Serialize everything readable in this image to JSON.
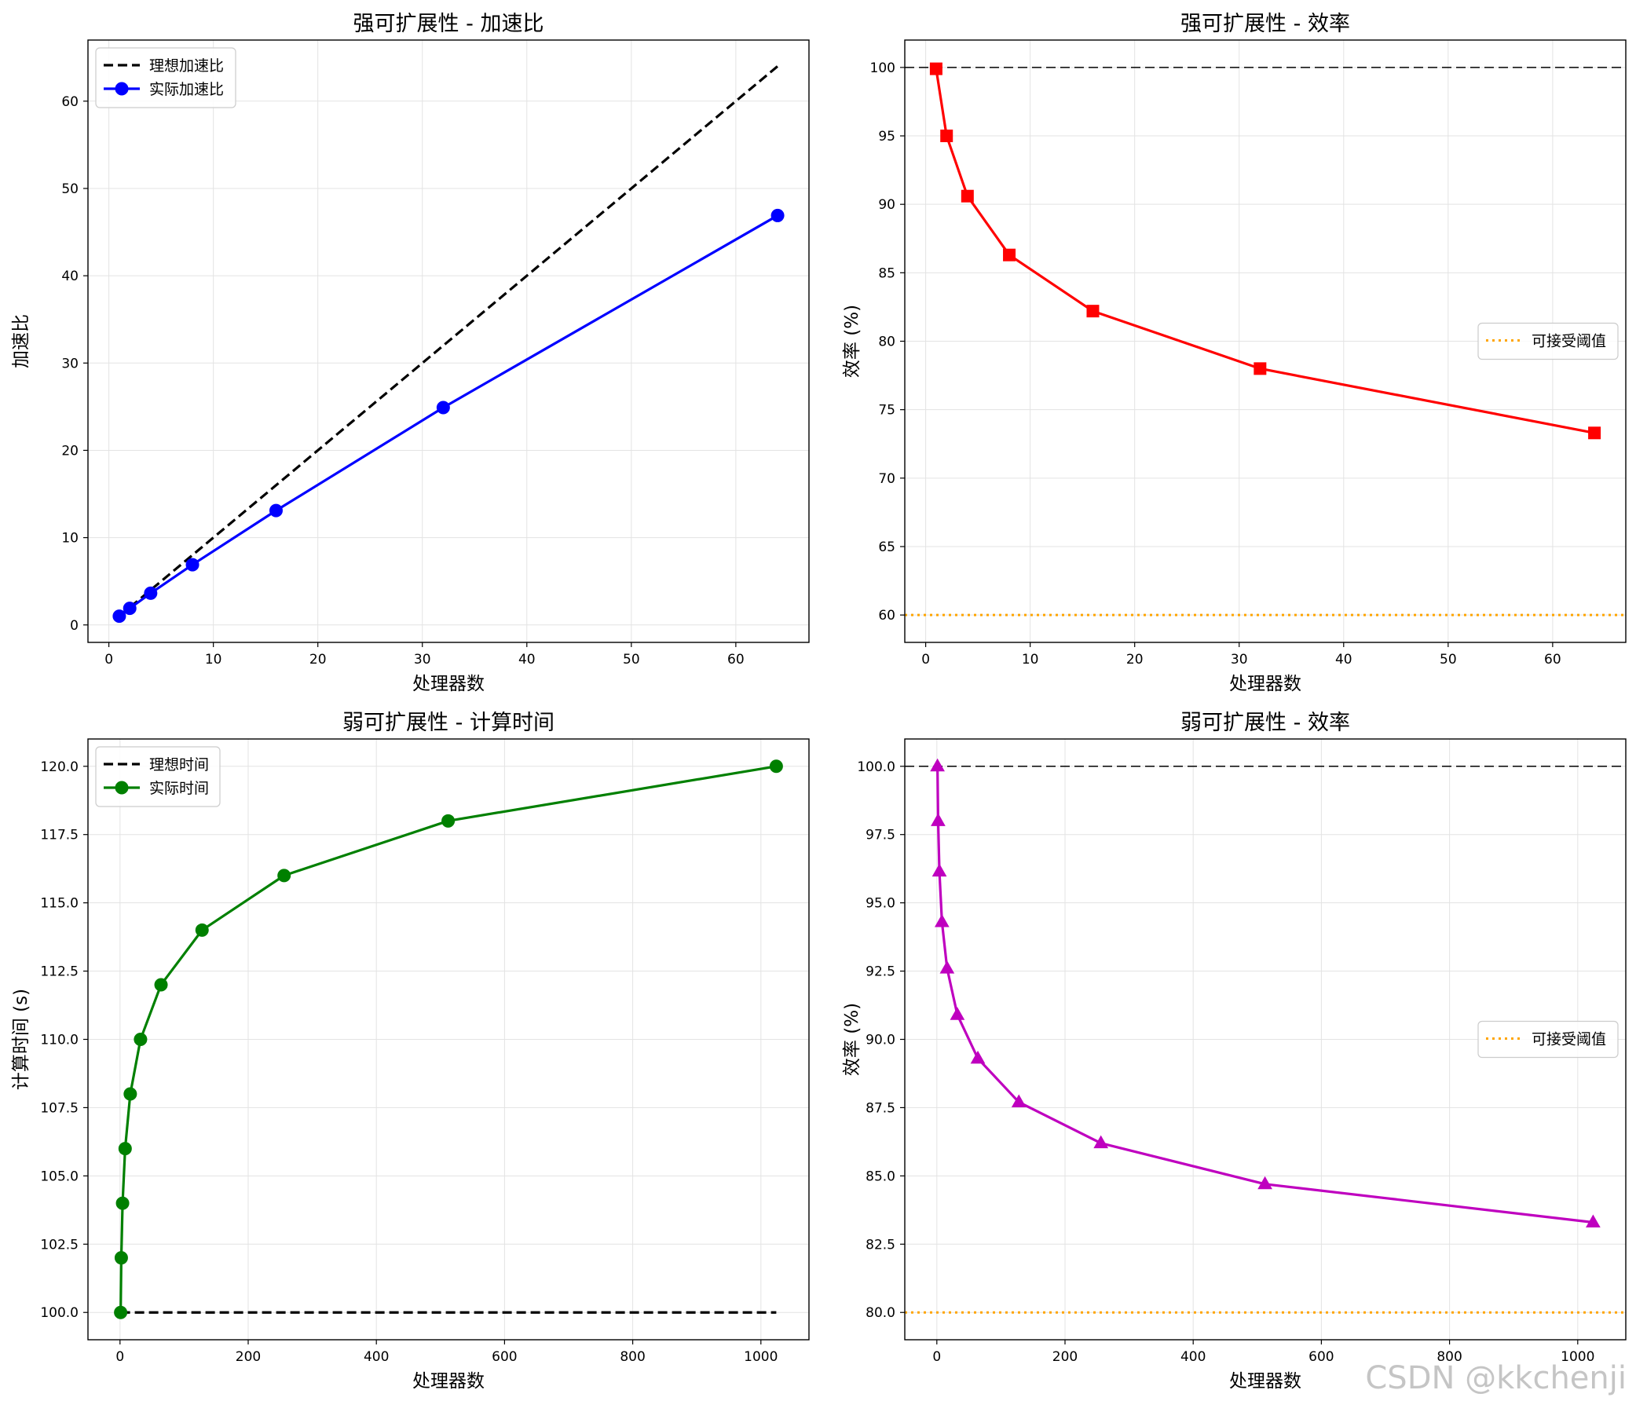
{
  "watermark": "CSDN @kkchenji",
  "chart_data": [
    {
      "type": "line",
      "title": "强可扩展性 - 加速比",
      "xlabel": "处理器数",
      "ylabel": "加速比",
      "xlim": [
        -2,
        67
      ],
      "ylim": [
        -2,
        67
      ],
      "xticks": [
        0,
        10,
        20,
        30,
        40,
        50,
        60
      ],
      "yticks": [
        0,
        10,
        20,
        30,
        40,
        50,
        60
      ],
      "grid": true,
      "legend": "top-left",
      "series": [
        {
          "name": "理想加速比",
          "style": "dashed",
          "color": "#000000",
          "marker": "none",
          "x": [
            1,
            2,
            4,
            8,
            16,
            32,
            64
          ],
          "y": [
            1,
            2,
            4,
            8,
            16,
            32,
            64
          ]
        },
        {
          "name": "实际加速比",
          "style": "solid",
          "color": "#0000ff",
          "marker": "circle",
          "x": [
            1,
            2,
            4,
            8,
            16,
            32,
            64
          ],
          "y": [
            1.0,
            1.9,
            3.63,
            6.9,
            13.1,
            24.9,
            46.9
          ]
        }
      ]
    },
    {
      "type": "line",
      "title": "强可扩展性 - 效率",
      "xlabel": "处理器数",
      "ylabel": "效率 (%)",
      "xlim": [
        -2,
        67
      ],
      "ylim": [
        58,
        102
      ],
      "xticks": [
        0,
        10,
        20,
        30,
        40,
        50,
        60
      ],
      "yticks": [
        60,
        65,
        70,
        75,
        80,
        85,
        90,
        95,
        100
      ],
      "grid": true,
      "legend": "center-right",
      "hlines": [
        {
          "y": 100,
          "style": "dashed",
          "color": "#000000",
          "width": 1.5
        },
        {
          "name": "可接受阈值",
          "y": 60,
          "style": "dotted",
          "color": "#ffa500",
          "width": 3
        }
      ],
      "series": [
        {
          "style": "solid",
          "color": "#ff0000",
          "marker": "square",
          "x": [
            1,
            2,
            4,
            8,
            16,
            32,
            64
          ],
          "y": [
            99.9,
            95.0,
            90.6,
            86.3,
            82.2,
            78.0,
            73.3
          ]
        }
      ]
    },
    {
      "type": "line",
      "title": "弱可扩展性 - 计算时间",
      "xlabel": "处理器数",
      "ylabel": "计算时间 (s)",
      "xlim": [
        -50,
        1075
      ],
      "ylim": [
        99,
        121
      ],
      "xticks": [
        0,
        200,
        400,
        600,
        800,
        1000
      ],
      "yticks": [
        100.0,
        102.5,
        105.0,
        107.5,
        110.0,
        112.5,
        115.0,
        117.5,
        120.0
      ],
      "ytick_labels": [
        "100.0",
        "102.5",
        "105.0",
        "107.5",
        "110.0",
        "112.5",
        "115.0",
        "117.5",
        "120.0"
      ],
      "grid": true,
      "legend": "top-left",
      "series": [
        {
          "name": "理想时间",
          "style": "dashed",
          "color": "#000000",
          "marker": "none",
          "x": [
            1,
            1024
          ],
          "y": [
            100,
            100
          ]
        },
        {
          "name": "实际时间",
          "style": "solid",
          "color": "#008000",
          "marker": "circle",
          "x": [
            1,
            2,
            4,
            8,
            16,
            32,
            64,
            128,
            256,
            512,
            1024
          ],
          "y": [
            100,
            102,
            104,
            106,
            108,
            110,
            112,
            114,
            116,
            118,
            120
          ]
        }
      ]
    },
    {
      "type": "line",
      "title": "弱可扩展性 - 效率",
      "xlabel": "处理器数",
      "ylabel": "效率 (%)",
      "xlim": [
        -50,
        1075
      ],
      "ylim": [
        79,
        101
      ],
      "xticks": [
        0,
        200,
        400,
        600,
        800,
        1000
      ],
      "yticks": [
        80.0,
        82.5,
        85.0,
        87.5,
        90.0,
        92.5,
        95.0,
        97.5,
        100.0
      ],
      "ytick_labels": [
        "80.0",
        "82.5",
        "85.0",
        "87.5",
        "90.0",
        "92.5",
        "95.0",
        "97.5",
        "100.0"
      ],
      "grid": true,
      "legend": "center-right",
      "hlines": [
        {
          "y": 100,
          "style": "dashed",
          "color": "#000000",
          "width": 1.5
        },
        {
          "name": "可接受阈值",
          "y": 80,
          "style": "dotted",
          "color": "#ffa500",
          "width": 3
        }
      ],
      "series": [
        {
          "style": "solid",
          "color": "#bf00bf",
          "marker": "triangle",
          "x": [
            1,
            2,
            4,
            8,
            16,
            32,
            64,
            128,
            256,
            512,
            1024
          ],
          "y": [
            100.0,
            98.0,
            96.15,
            94.3,
            92.6,
            90.9,
            89.3,
            87.7,
            86.2,
            84.7,
            83.3
          ]
        }
      ]
    }
  ]
}
